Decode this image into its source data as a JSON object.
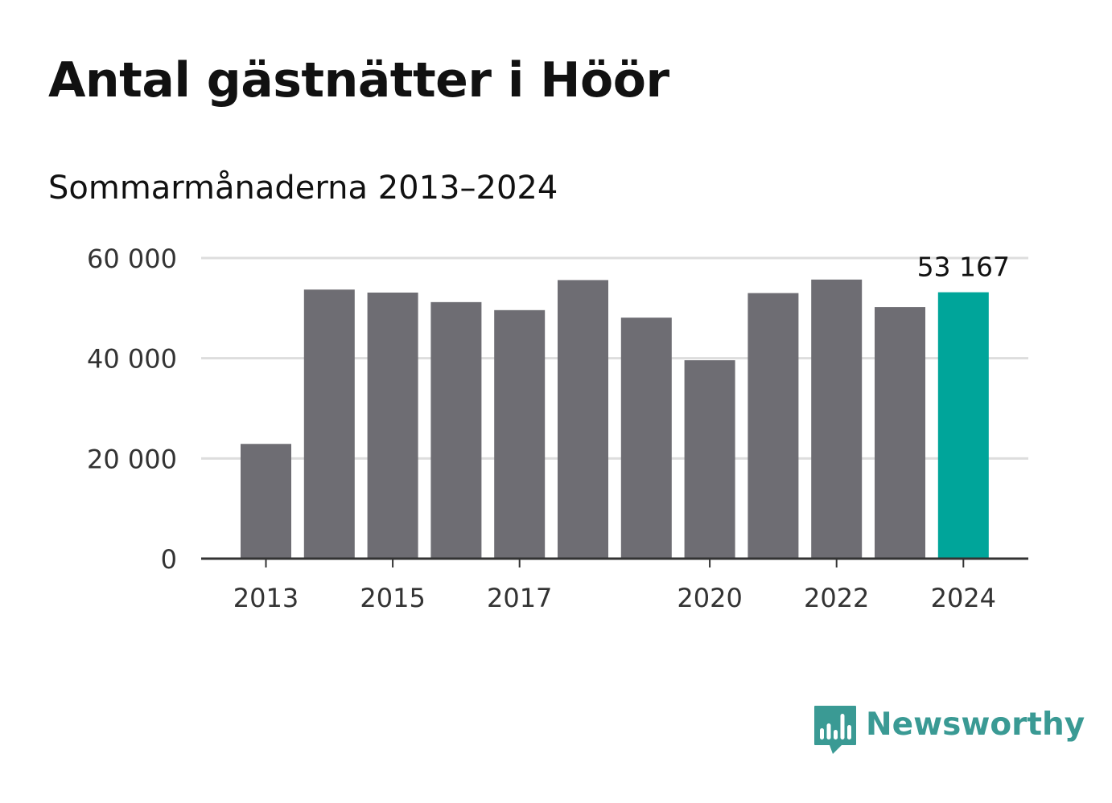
{
  "title": "Antal gästnätter i Höör",
  "subtitle": "Sommarmånaderna 2013–2024",
  "brand": {
    "name": "Newsworthy",
    "logo_icon": "bar-chart-speech-bubble-icon"
  },
  "colors": {
    "bar": "#6e6d73",
    "highlight": "#00a59a",
    "grid": "#dddddd",
    "axis": "#333333",
    "tick_text": "#333333",
    "brand": "#3a9a94"
  },
  "chart_data": {
    "type": "bar",
    "categories": [
      "2013",
      "2014",
      "2015",
      "2016",
      "2017",
      "2018",
      "2019",
      "2020",
      "2021",
      "2022",
      "2023",
      "2024"
    ],
    "values": [
      22900,
      53700,
      53100,
      51200,
      49600,
      55600,
      48100,
      39600,
      53000,
      55700,
      50200,
      53167
    ],
    "highlight_index": 11,
    "highlight_label": "53 167",
    "ylim": [
      0,
      60000
    ],
    "yticks": [
      0,
      20000,
      40000,
      60000
    ],
    "ytick_labels": [
      "0",
      "20 000",
      "40 000",
      "60 000"
    ],
    "xtick_labels": [
      "2013",
      "2015",
      "2017",
      "2020",
      "2022",
      "2024"
    ],
    "grid": true,
    "legend": "none"
  }
}
